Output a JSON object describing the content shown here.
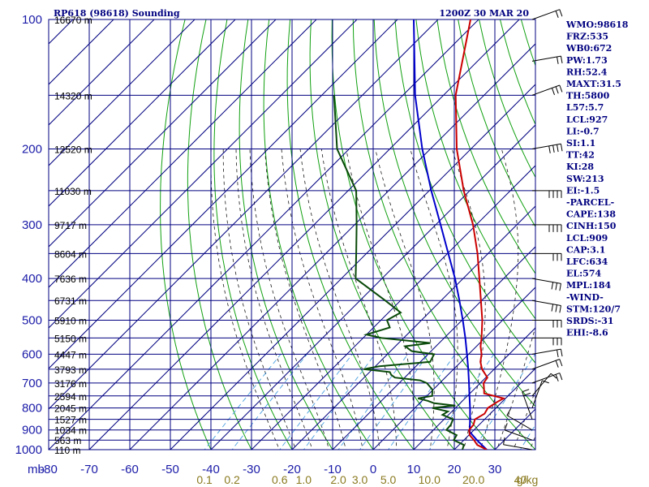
{
  "header": {
    "station": "RP618 (98618) Sounding",
    "time": "1200Z 30 MAR 20"
  },
  "axes": {
    "pressure_unit": "mb",
    "mixing_ratio_unit": "g/kg"
  },
  "colors": {
    "temperature": "#cc0000",
    "dewpoint": "#0a4a0a",
    "parcel": "#0000cc",
    "isobar": "#000080",
    "isotherm": "#000080",
    "dry_adiabat": "#11a011",
    "moist_adiabat": "#1a1a1a",
    "mixing_ratio": "#4aa0e0"
  },
  "indices": [
    "WMO:98618",
    "FRZ:535",
    "WB0:672",
    "PW:1.73",
    "RH:52.4",
    "MAXT:31.5",
    "TH:5800",
    "L57:5.7",
    "LCL:927",
    "LI:-0.7",
    "SI:1.1",
    "TT:42",
    "KI:28",
    "SW:213",
    "EI:-1.5",
    "-PARCEL-",
    "CAPE:138",
    "CINH:150",
    "LCL:909",
    "CAP:3.1",
    "LFC:634",
    "EL:574",
    "MPL:184",
    "-WIND-",
    "STM:120/7",
    "SRDS:-31",
    "EHI:-8.6"
  ],
  "chart_data": {
    "type": "line",
    "title": "RP618 (98618) Sounding",
    "subtitle": "1200Z 30 MAR 20",
    "xlabel": "",
    "ylabel": "mb",
    "xlim": [
      -80,
      40
    ],
    "ylim": [
      1000,
      100
    ],
    "y_scale": "log",
    "skew": "temperature lines skewed right with height",
    "grid": true,
    "pressure_ticks": [
      {
        "p": 100,
        "label": "100"
      },
      {
        "p": 200,
        "label": "200"
      },
      {
        "p": 300,
        "label": "300"
      },
      {
        "p": 400,
        "label": "400"
      },
      {
        "p": 500,
        "label": "500"
      },
      {
        "p": 600,
        "label": "600"
      },
      {
        "p": 700,
        "label": "700"
      },
      {
        "p": 800,
        "label": "800"
      },
      {
        "p": 900,
        "label": "900"
      },
      {
        "p": 1000,
        "label": "1000"
      }
    ],
    "temperature_ticks": [
      {
        "t": -80,
        "label": "-80"
      },
      {
        "t": -70,
        "label": "-70"
      },
      {
        "t": -60,
        "label": "-60"
      },
      {
        "t": -50,
        "label": "-50"
      },
      {
        "t": -40,
        "label": "-40"
      },
      {
        "t": -30,
        "label": "-30"
      },
      {
        "t": -20,
        "label": "-20"
      },
      {
        "t": -10,
        "label": "-10"
      },
      {
        "t": 0,
        "label": "0"
      },
      {
        "t": 10,
        "label": "10"
      },
      {
        "t": 20,
        "label": "20"
      },
      {
        "t": 30,
        "label": "30"
      }
    ],
    "height_labels": [
      {
        "p": 100,
        "label": "16670 m"
      },
      {
        "p": 150,
        "label": "14320 m"
      },
      {
        "p": 200,
        "label": "12520 m"
      },
      {
        "p": 250,
        "label": "11030 m"
      },
      {
        "p": 300,
        "label": "9717 m"
      },
      {
        "p": 350,
        "label": "8604 m"
      },
      {
        "p": 400,
        "label": "7636 m"
      },
      {
        "p": 450,
        "label": "6731 m"
      },
      {
        "p": 500,
        "label": "5910 m"
      },
      {
        "p": 550,
        "label": "5150 m"
      },
      {
        "p": 600,
        "label": "4447 m"
      },
      {
        "p": 650,
        "label": "3793 m"
      },
      {
        "p": 700,
        "label": "3176 m"
      },
      {
        "p": 750,
        "label": "2594 m"
      },
      {
        "p": 800,
        "label": "2045 m"
      },
      {
        "p": 850,
        "label": "1527 m"
      },
      {
        "p": 900,
        "label": "1034 m"
      },
      {
        "p": 950,
        "label": "563 m"
      },
      {
        "p": 1000,
        "label": "110 m"
      }
    ],
    "mixing_ratio_lines": [
      {
        "w": 0.1,
        "label": "0.1"
      },
      {
        "w": 0.2,
        "label": "0.2"
      },
      {
        "w": 0.6,
        "label": "0.6"
      },
      {
        "w": 1.0,
        "label": "1.0"
      },
      {
        "w": 2.0,
        "label": "2.0"
      },
      {
        "w": 3.0,
        "label": "3.0"
      },
      {
        "w": 5.0,
        "label": "5.0"
      },
      {
        "w": 10.0,
        "label": "10.0"
      },
      {
        "w": 20.0,
        "label": "20.0"
      },
      {
        "w": 40.0,
        "label": "40"
      }
    ],
    "series": [
      {
        "key": "temperature",
        "points": [
          [
            1000,
            28.0
          ],
          [
            975,
            24.5
          ],
          [
            950,
            22.5
          ],
          [
            925,
            20.2
          ],
          [
            900,
            18.8
          ],
          [
            875,
            18.6
          ],
          [
            850,
            17.6
          ],
          [
            825,
            18.6
          ],
          [
            800,
            18.0
          ],
          [
            775,
            18.8
          ],
          [
            760,
            19.5
          ],
          [
            740,
            13.5
          ],
          [
            720,
            12.2
          ],
          [
            700,
            10.8
          ],
          [
            680,
            10.4
          ],
          [
            650,
            7.0
          ],
          [
            625,
            4.8
          ],
          [
            600,
            3.2
          ],
          [
            575,
            1.0
          ],
          [
            550,
            -0.8
          ],
          [
            500,
            -5.0
          ],
          [
            450,
            -10.2
          ],
          [
            400,
            -16.0
          ],
          [
            350,
            -22.6
          ],
          [
            300,
            -30.8
          ],
          [
            250,
            -41.5
          ],
          [
            200,
            -53.5
          ],
          [
            150,
            -67.0
          ],
          [
            100,
            -82.0
          ]
        ]
      },
      {
        "key": "dewpoint",
        "points": [
          [
            1000,
            22.0
          ],
          [
            975,
            21.2
          ],
          [
            950,
            17.5
          ],
          [
            925,
            17.0
          ],
          [
            900,
            13.2
          ],
          [
            875,
            13.0
          ],
          [
            850,
            12.2
          ],
          [
            830,
            8.5
          ],
          [
            815,
            9.0
          ],
          [
            800,
            4.3
          ],
          [
            790,
            9.4
          ],
          [
            780,
            3.6
          ],
          [
            770,
            1.4
          ],
          [
            760,
            -1.6
          ],
          [
            750,
            1.3
          ],
          [
            725,
            -0.2
          ],
          [
            700,
            -3.2
          ],
          [
            690,
            -5.5
          ],
          [
            680,
            -12.4
          ],
          [
            670,
            -14.0
          ],
          [
            660,
            -15.0
          ],
          [
            650,
            -22.2
          ],
          [
            640,
            -19.0
          ],
          [
            625,
            -7.6
          ],
          [
            600,
            -8.5
          ],
          [
            590,
            -14.8
          ],
          [
            575,
            -17.6
          ],
          [
            565,
            -12.2
          ],
          [
            550,
            -25.5
          ],
          [
            540,
            -30.0
          ],
          [
            520,
            -26.0
          ],
          [
            500,
            -28.5
          ],
          [
            480,
            -27.0
          ],
          [
            450,
            -33.8
          ],
          [
            400,
            -46.5
          ],
          [
            350,
            -52.5
          ],
          [
            300,
            -59.5
          ],
          [
            250,
            -68.0
          ],
          [
            200,
            -83.0
          ],
          [
            150,
            -97.0
          ]
        ]
      },
      {
        "key": "parcel",
        "points": [
          [
            1000,
            28.0
          ],
          [
            950,
            23.2
          ],
          [
            909,
            19.4
          ],
          [
            850,
            16.4
          ],
          [
            800,
            13.6
          ],
          [
            750,
            10.5
          ],
          [
            700,
            7.2
          ],
          [
            650,
            3.6
          ],
          [
            600,
            -0.4
          ],
          [
            550,
            -4.8
          ],
          [
            500,
            -9.8
          ],
          [
            450,
            -15.5
          ],
          [
            400,
            -22.0
          ],
          [
            350,
            -29.8
          ],
          [
            300,
            -38.8
          ],
          [
            250,
            -49.5
          ],
          [
            200,
            -62.0
          ],
          [
            150,
            -77.0
          ],
          [
            100,
            -96.0
          ]
        ]
      }
    ],
    "winds": [
      {
        "p": 1000,
        "dir": 100,
        "spd": 10
      },
      {
        "p": 950,
        "dir": 110,
        "spd": 10
      },
      {
        "p": 900,
        "dir": 120,
        "spd": 10
      },
      {
        "p": 850,
        "dir": 160,
        "spd": 15
      },
      {
        "p": 800,
        "dir": 200,
        "spd": 10
      },
      {
        "p": 750,
        "dir": 220,
        "spd": 10
      },
      {
        "p": 700,
        "dir": 250,
        "spd": 15
      },
      {
        "p": 650,
        "dir": 250,
        "spd": 20
      },
      {
        "p": 600,
        "dir": 260,
        "spd": 20
      },
      {
        "p": 550,
        "dir": 270,
        "spd": 25
      },
      {
        "p": 500,
        "dir": 270,
        "spd": 25
      },
      {
        "p": 450,
        "dir": 280,
        "spd": 25
      },
      {
        "p": 400,
        "dir": 280,
        "spd": 30
      },
      {
        "p": 350,
        "dir": 270,
        "spd": 30
      },
      {
        "p": 300,
        "dir": 270,
        "spd": 35
      },
      {
        "p": 250,
        "dir": 270,
        "spd": 35
      },
      {
        "p": 200,
        "dir": 260,
        "spd": 35
      },
      {
        "p": 150,
        "dir": 250,
        "spd": 25
      },
      {
        "p": 125,
        "dir": 260,
        "spd": 20
      },
      {
        "p": 100,
        "dir": 250,
        "spd": 20
      }
    ]
  }
}
